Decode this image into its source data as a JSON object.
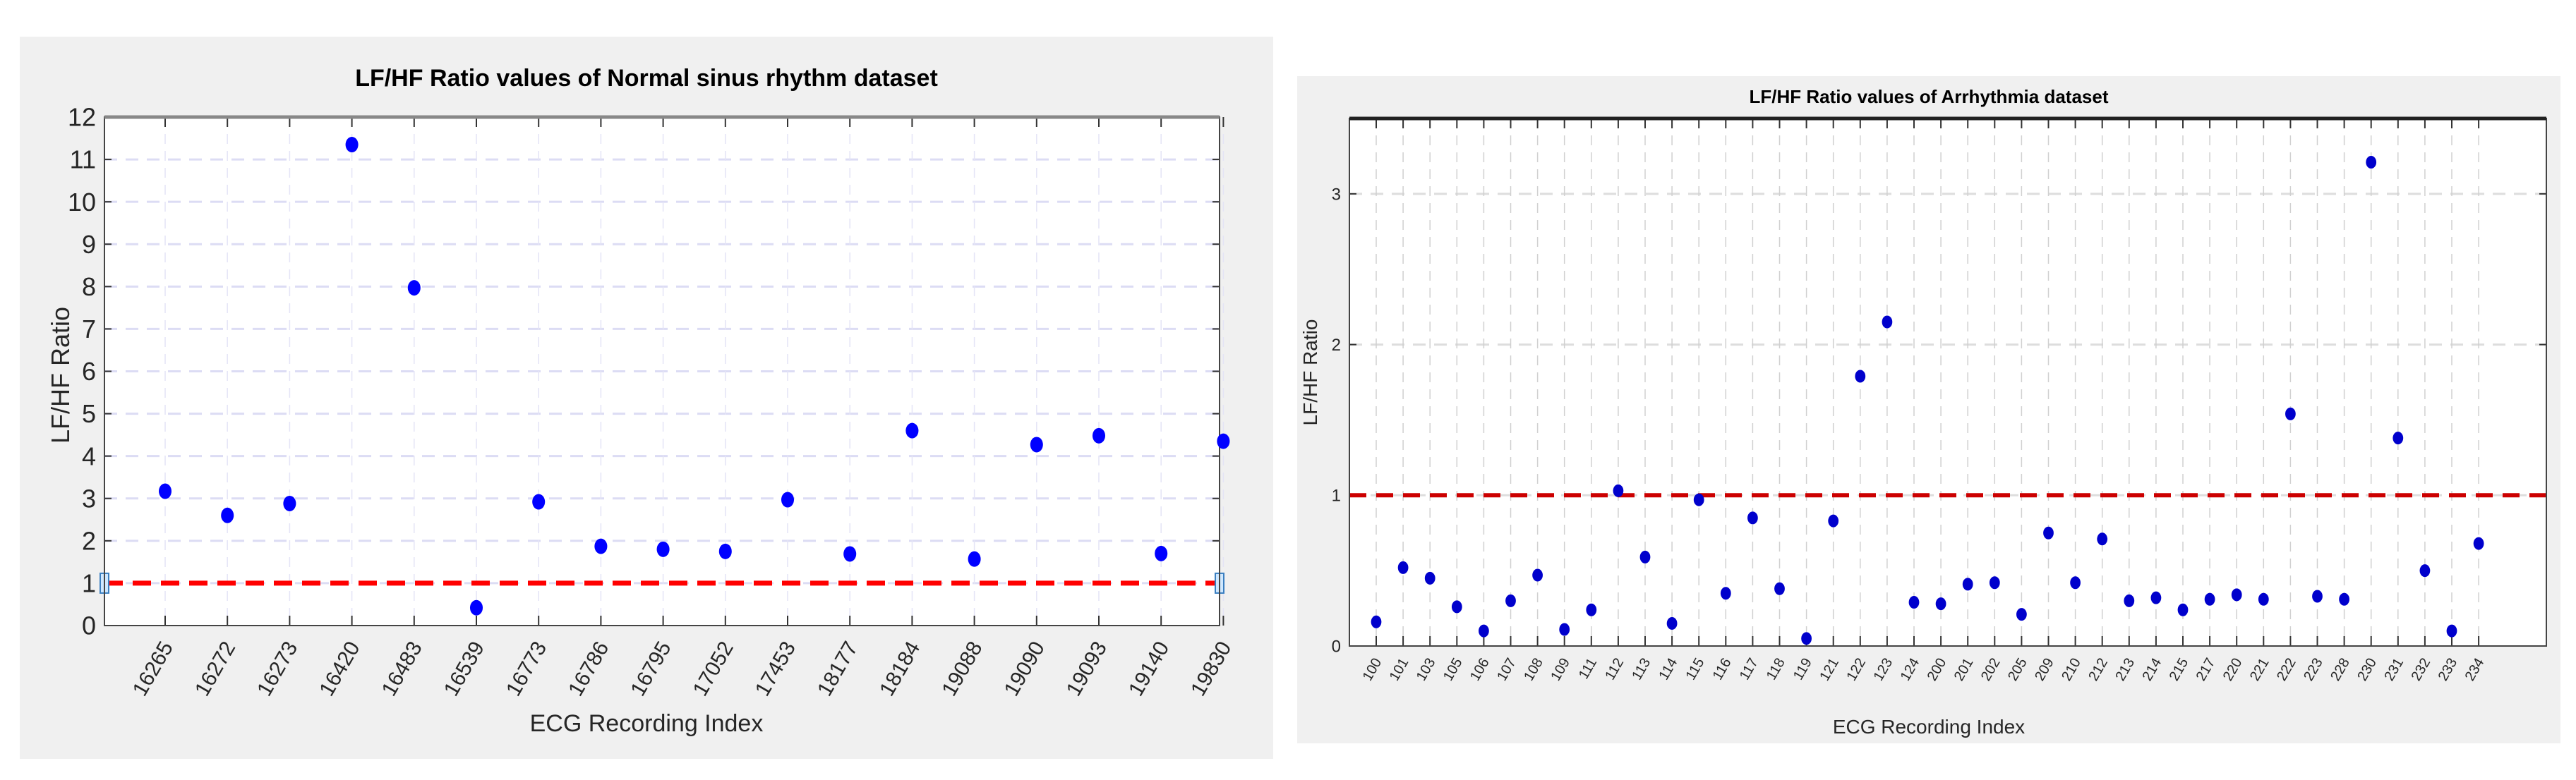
{
  "chart_data": [
    {
      "type": "scatter",
      "title": "LF/HF Ratio values of Normal sinus rhythm dataset",
      "xlabel": "ECG Recording Index",
      "ylabel": "LF/HF Ratio",
      "ylim": [
        0,
        12
      ],
      "yticks": [
        0,
        1,
        2,
        3,
        4,
        5,
        6,
        7,
        8,
        9,
        10,
        11,
        12
      ],
      "grid": true,
      "categories": [
        "16265",
        "16272",
        "16273",
        "16420",
        "16483",
        "16539",
        "16773",
        "16786",
        "16795",
        "17052",
        "17453",
        "18177",
        "18184",
        "19088",
        "19090",
        "19093",
        "19140",
        "19830"
      ],
      "values": [
        3.17,
        2.6,
        2.88,
        11.35,
        7.97,
        0.42,
        2.92,
        1.87,
        1.8,
        1.75,
        2.97,
        1.69,
        4.6,
        1.57,
        4.27,
        4.48,
        1.7,
        4.35
      ],
      "marker_color": "#0000ff",
      "threshold": {
        "y": 1,
        "style": "dashed",
        "color": "#ff0000"
      }
    },
    {
      "type": "scatter",
      "title": "LF/HF Ratio values of Arrhythmia dataset",
      "xlabel": "ECG Recording Index",
      "ylabel": "LF/HF Ratio",
      "ylim": [
        0,
        3.5
      ],
      "yticks": [
        0,
        1,
        2,
        3
      ],
      "grid": true,
      "categories": [
        "100",
        "101",
        "103",
        "105",
        "106",
        "107",
        "108",
        "109",
        "111",
        "112",
        "113",
        "114",
        "115",
        "116",
        "117",
        "118",
        "119",
        "121",
        "122",
        "123",
        "124",
        "200",
        "201",
        "202",
        "205",
        "209",
        "210",
        "212",
        "213",
        "214",
        "215",
        "217",
        "220",
        "221",
        "222",
        "223",
        "228",
        "230",
        "231",
        "232",
        "233",
        "234"
      ],
      "values": [
        0.16,
        0.52,
        0.45,
        0.26,
        0.1,
        0.3,
        0.47,
        0.11,
        0.24,
        1.03,
        0.59,
        0.15,
        0.97,
        0.35,
        0.85,
        0.38,
        0.05,
        0.83,
        1.79,
        2.15,
        0.29,
        0.28,
        0.41,
        0.42,
        0.21,
        0.75,
        0.42,
        0.71,
        0.3,
        0.32,
        0.24,
        0.31,
        0.34,
        0.31,
        1.54,
        0.33,
        0.31,
        3.21,
        1.38,
        0.5,
        0.1,
        0.68
      ],
      "marker_color": "#0000cc",
      "threshold": {
        "y": 1,
        "style": "dashed",
        "color": "#cc0000"
      }
    }
  ],
  "left": {
    "title": "LF/HF Ratio values of Normal sinus rhythm dataset",
    "xlabel": "ECG Recording Index",
    "ylabel": "LF/HF Ratio"
  },
  "right": {
    "title": "LF/HF Ratio values of Arrhythmia dataset",
    "xlabel": "ECG Recording Index",
    "ylabel": "LF/HF Ratio"
  }
}
